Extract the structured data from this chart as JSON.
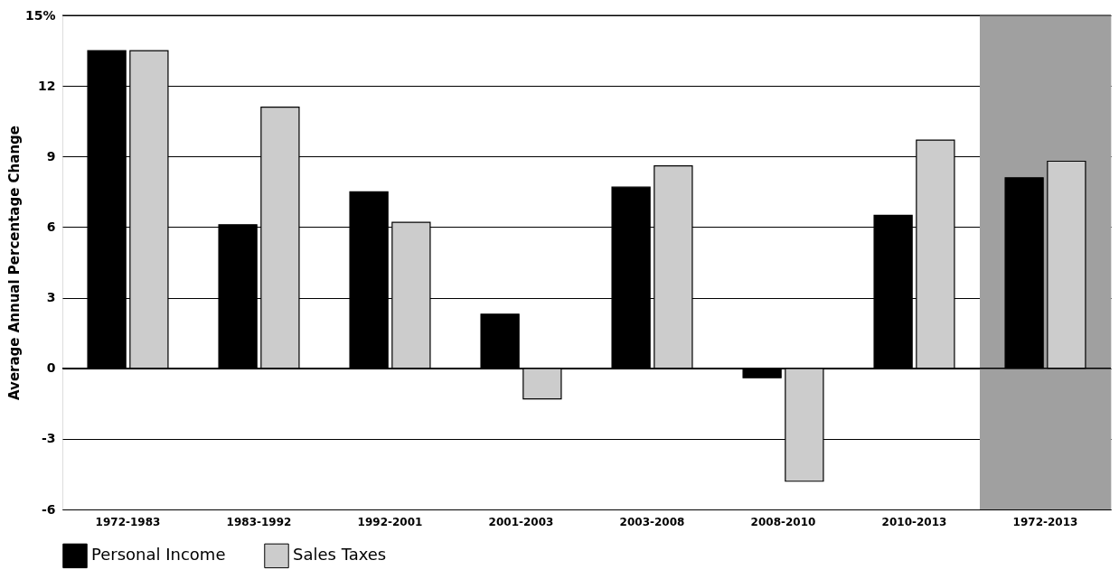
{
  "chart_data": {
    "type": "bar",
    "ylabel": "Average Annual Percentage Change",
    "categories": [
      "1972-1983",
      "1983-1992",
      "1992-2001",
      "2001-2003",
      "2003-2008",
      "2008-2010",
      "2010-2013",
      "1972-2013"
    ],
    "series": [
      {
        "name": "Personal Income",
        "color": "#000000",
        "values": [
          13.5,
          6.1,
          7.5,
          2.3,
          7.7,
          -0.4,
          6.5,
          8.1
        ]
      },
      {
        "name": "Sales Taxes",
        "color": "#cccccc",
        "values": [
          13.5,
          11.1,
          6.2,
          -1.3,
          8.6,
          -4.8,
          9.7,
          8.8
        ]
      }
    ],
    "ylim": [
      -6,
      15
    ],
    "yticks": [
      {
        "value": 15,
        "label": "15%"
      },
      12,
      9,
      6,
      3,
      0,
      -3,
      -6
    ],
    "bands": [
      {
        "axis": "x",
        "from": "1972-2013",
        "to": "1972-2013",
        "color": "#a0a0a0"
      }
    ],
    "grid": "y",
    "legend": "bottom"
  }
}
